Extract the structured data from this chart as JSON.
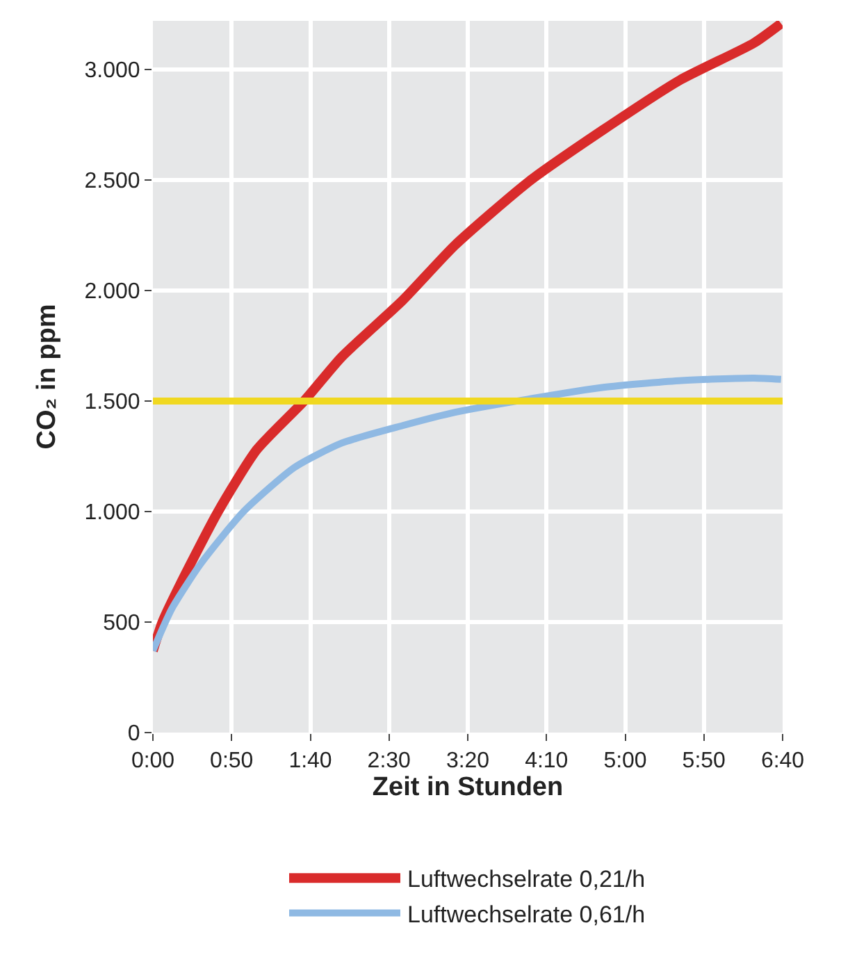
{
  "chart_data": {
    "type": "line",
    "xlabel": "Zeit in Stunden",
    "ylabel": "CO₂ in ppm",
    "xlim": [
      0,
      6.6667
    ],
    "ylim": [
      0,
      3220
    ],
    "xticks": [
      {
        "value": 0,
        "label": "0:00"
      },
      {
        "value": 0.8333,
        "label": "0:50"
      },
      {
        "value": 1.6667,
        "label": "1:40"
      },
      {
        "value": 2.5,
        "label": "2:30"
      },
      {
        "value": 3.3333,
        "label": "3:20"
      },
      {
        "value": 4.1667,
        "label": "4:10"
      },
      {
        "value": 5,
        "label": "5:00"
      },
      {
        "value": 5.8333,
        "label": "5:50"
      },
      {
        "value": 6.6667,
        "label": "6:40"
      }
    ],
    "yticks": [
      0,
      {
        "value": 500,
        "label": "500"
      },
      {
        "value": 1000,
        "label": "1.000"
      },
      {
        "value": 1500,
        "label": "1.500"
      },
      {
        "value": 2000,
        "label": "2.000"
      },
      {
        "value": 2500,
        "label": "2.500"
      },
      {
        "value": 3000,
        "label": "3.000"
      }
    ],
    "grid": true,
    "legend": "bottom",
    "line_style": "solid",
    "series": [
      {
        "name": "Luftwechselrate 0,21/h",
        "color": "#d92b2b",
        "x": [
          0,
          0.1,
          0.3,
          0.69,
          1.1,
          1.6,
          2.0,
          2.645,
          3.2,
          3.98,
          4.76,
          5.58,
          6.36,
          6.65
        ],
        "values": [
          370,
          500,
          680,
          1000,
          1280,
          1500,
          1700,
          1956,
          2206,
          2493,
          2725,
          2952,
          3119,
          3208
        ]
      },
      {
        "name": "Luftwechselrate 0,61/h",
        "color": "#8fb9e3",
        "x": [
          0,
          0.2,
          0.5,
          0.96,
          1.5,
          2.0,
          2.645,
          3.2,
          3.98,
          4.77,
          5.57,
          6.36,
          6.65
        ],
        "values": [
          370,
          560,
          760,
          1000,
          1200,
          1310,
          1389,
          1449,
          1509,
          1562,
          1592,
          1604,
          1598
        ]
      }
    ],
    "ref_lines": [
      {
        "axis": "y",
        "value": 1500,
        "label": null,
        "color": "#f0d820"
      }
    ]
  }
}
